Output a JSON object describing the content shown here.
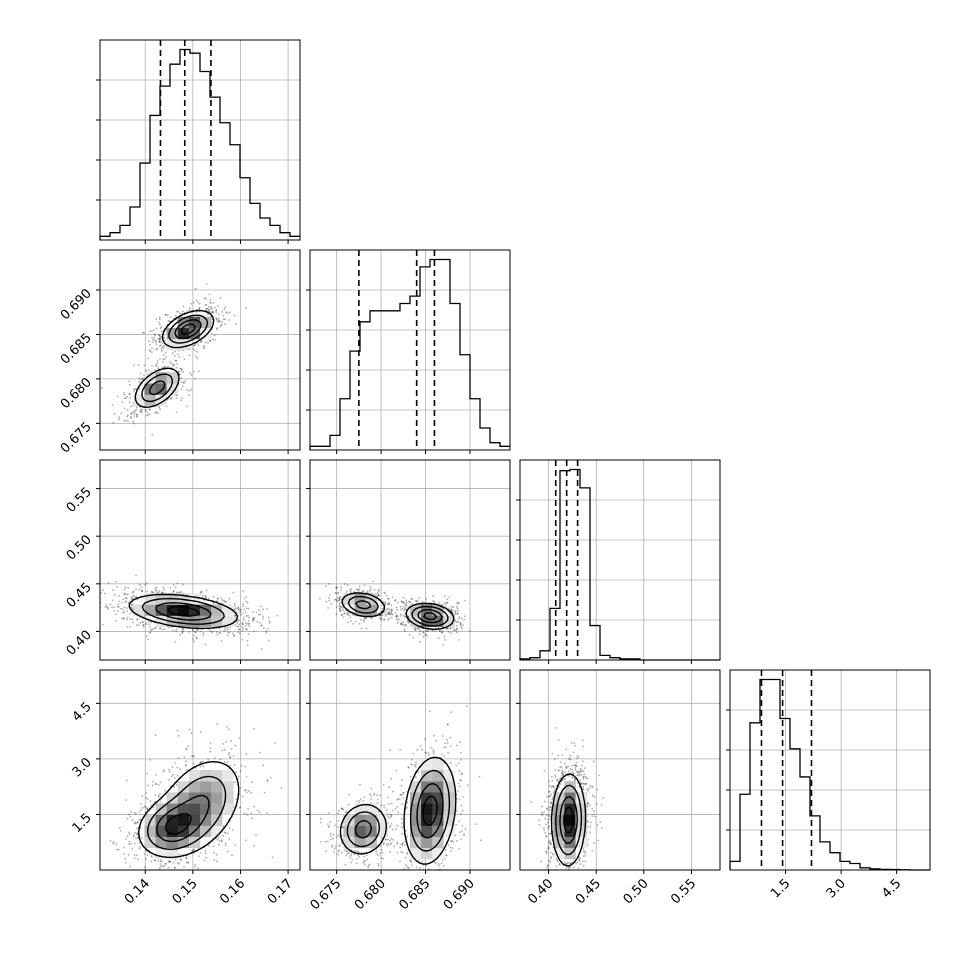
{
  "chart_data": {
    "type": "corner",
    "title": "",
    "grid": true,
    "parameters": [
      {
        "ticks": [
          0.14,
          0.15,
          0.16,
          0.17
        ],
        "tick_labels": [
          "0.14",
          "0.15",
          "0.16",
          "0.17"
        ],
        "range": [
          0.1305,
          0.1725
        ],
        "quantiles": [
          0.1432,
          0.1483,
          0.1538
        ],
        "hist": {
          "edges_start": 0.1305,
          "bin_width": 0.0021,
          "counts": [
            1,
            2,
            4,
            9,
            21,
            34,
            42,
            48,
            52,
            51,
            46,
            39,
            32,
            26,
            17,
            10,
            6,
            4,
            2,
            1
          ]
        }
      },
      {
        "ticks": [
          0.675,
          0.68,
          0.685,
          0.69
        ],
        "tick_labels": [
          "0.675",
          "0.680",
          "0.685",
          "0.690"
        ],
        "range": [
          0.672,
          0.6945
        ],
        "quantiles": [
          0.6775,
          0.684,
          0.686
        ],
        "hist": {
          "edges_start": 0.672,
          "bin_width": 0.001125,
          "counts": [
            1,
            1,
            4,
            14,
            27,
            35,
            38,
            38,
            38,
            40,
            42,
            50,
            52,
            52,
            40,
            26,
            14,
            6,
            2,
            1
          ]
        }
      },
      {
        "ticks": [
          0.4,
          0.45,
          0.5,
          0.55
        ],
        "tick_labels": [
          "0.40",
          "0.45",
          "0.50",
          "0.55"
        ],
        "range": [
          0.37,
          0.58
        ],
        "quantiles": [
          0.4075,
          0.419,
          0.4305
        ],
        "hist": {
          "edges_start": 0.37,
          "bin_width": 0.0105,
          "counts": [
            1,
            2,
            8,
            45,
            165,
            166,
            150,
            30,
            4,
            2,
            1,
            1,
            0,
            0,
            0,
            0,
            0,
            0,
            0,
            0
          ]
        }
      },
      {
        "ticks": [
          1.5,
          3.0,
          4.5
        ],
        "tick_labels": [
          "1.5",
          "3.0",
          "4.5"
        ],
        "range": [
          0,
          5.4
        ],
        "quantiles": [
          0.85,
          1.42,
          2.2
        ],
        "hist": {
          "edges_start": 0,
          "bin_width": 0.27,
          "counts": [
            4,
            35,
            68,
            88,
            88,
            70,
            56,
            43,
            25,
            13,
            8,
            4,
            3,
            1,
            0.5,
            0.3,
            0.2,
            0.1,
            0,
            0
          ]
        }
      }
    ],
    "pairs": [
      {
        "row": 1,
        "col": 0,
        "modes": [
          {
            "x": 0.1425,
            "y": 0.679,
            "sx": 0.0024,
            "sy": 0.00115,
            "rho": 0.5,
            "w": 0.42
          },
          {
            "x": 0.149,
            "y": 0.6856,
            "sx": 0.0026,
            "sy": 0.001,
            "rho": 0.45,
            "w": 0.58
          }
        ]
      },
      {
        "row": 2,
        "col": 0,
        "modes": [
          {
            "x": 0.148,
            "y": 0.421,
            "sx": 0.0055,
            "sy": 0.0085,
            "rho": -0.35,
            "w": 1.0
          }
        ]
      },
      {
        "row": 2,
        "col": 1,
        "modes": [
          {
            "x": 0.678,
            "y": 0.428,
            "sx": 0.00125,
            "sy": 0.0065,
            "rho": -0.25,
            "w": 0.42
          },
          {
            "x": 0.6855,
            "y": 0.416,
            "sx": 0.0013,
            "sy": 0.0065,
            "rho": -0.2,
            "w": 0.58
          }
        ]
      },
      {
        "row": 3,
        "col": 0,
        "modes": [
          {
            "x": 0.1455,
            "y": 1.15,
            "sx": 0.0035,
            "sy": 0.38,
            "rho": 0.2,
            "w": 0.55
          },
          {
            "x": 0.1515,
            "y": 1.75,
            "sx": 0.0045,
            "sy": 0.65,
            "rho": 0.35,
            "w": 0.45
          }
        ]
      },
      {
        "row": 3,
        "col": 1,
        "modes": [
          {
            "x": 0.678,
            "y": 1.1,
            "sx": 0.00135,
            "sy": 0.35,
            "rho": 0.1,
            "w": 0.42
          },
          {
            "x": 0.6855,
            "y": 1.6,
            "sx": 0.0014,
            "sy": 0.7,
            "rho": 0.2,
            "w": 0.58
          }
        ]
      },
      {
        "row": 3,
        "col": 2,
        "modes": [
          {
            "x": 0.421,
            "y": 1.35,
            "sx": 0.0085,
            "sy": 0.6,
            "rho": 0.05,
            "w": 1.0
          }
        ]
      }
    ]
  }
}
